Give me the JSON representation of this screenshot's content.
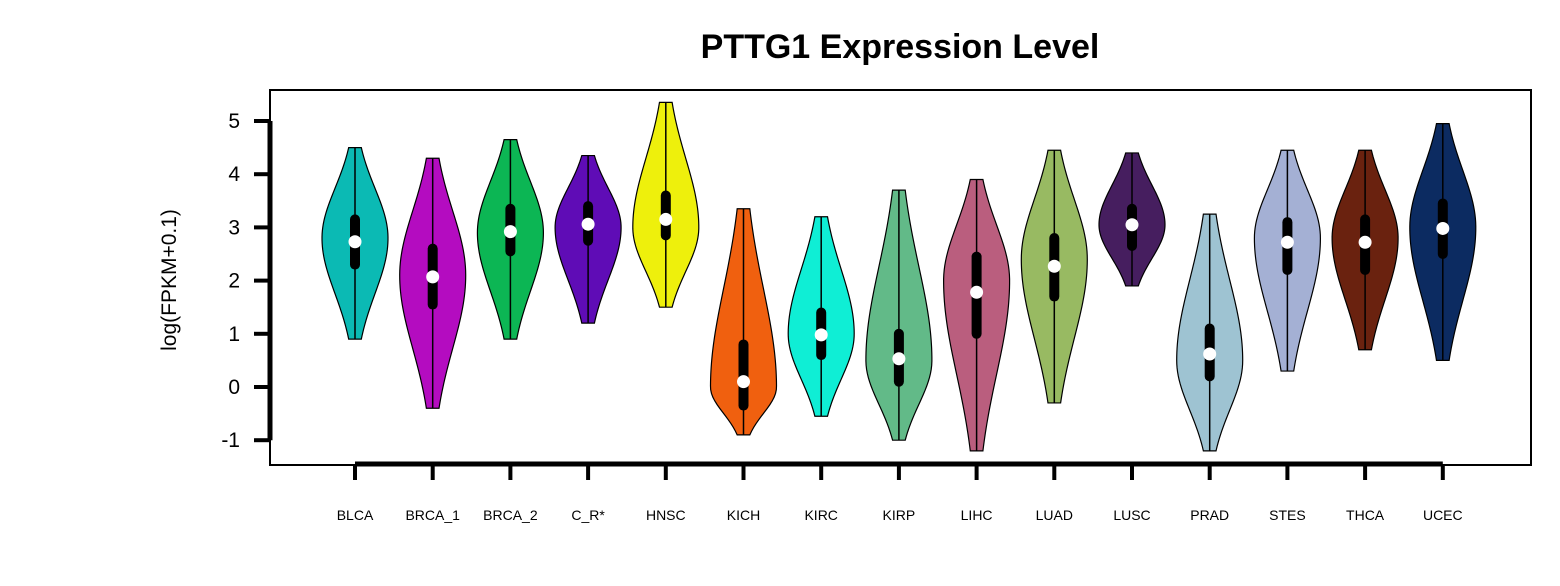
{
  "chart_data": {
    "type": "violin",
    "title": "PTTG1 Expression Level",
    "ylabel": "log(FPKM+0.1)",
    "xlabel": "",
    "ylim": [
      -1.5,
      5.6
    ],
    "yticks": [
      -1,
      0,
      1,
      2,
      3,
      4,
      5
    ],
    "categories": [
      "BLCA",
      "BRCA_1",
      "BRCA_2",
      "C_R*",
      "HNSC",
      "KICH",
      "KIRC",
      "KIRP",
      "LIHC",
      "LUAD",
      "LUSC",
      "PRAD",
      "STES",
      "THCA",
      "UCEC"
    ],
    "series": [
      {
        "category": "BLCA",
        "color": "#0BBAB4",
        "min": 0.9,
        "max": 4.5,
        "q1": 2.3,
        "median": 2.73,
        "q3": 3.15,
        "mode": 2.8
      },
      {
        "category": "BRCA_1",
        "color": "#B40CC0",
        "min": -0.4,
        "max": 4.3,
        "q1": 1.55,
        "median": 2.07,
        "q3": 2.6,
        "mode": 2.1
      },
      {
        "category": "BRCA_2",
        "color": "#0CB654",
        "min": 0.9,
        "max": 4.65,
        "q1": 2.55,
        "median": 2.92,
        "q3": 3.35,
        "mode": 2.9
      },
      {
        "category": "C_R*",
        "color": "#5F0CB6",
        "min": 1.2,
        "max": 4.35,
        "q1": 2.75,
        "median": 3.06,
        "q3": 3.4,
        "mode": 3.0
      },
      {
        "category": "HNSC",
        "color": "#EEF00C",
        "min": 1.5,
        "max": 5.35,
        "q1": 2.85,
        "median": 3.15,
        "q3": 3.6,
        "mode": 3.0
      },
      {
        "category": "KICH",
        "color": "#F0600F",
        "min": -0.9,
        "max": 3.35,
        "q1": -0.35,
        "median": 0.1,
        "q3": 0.8,
        "mode": 0.0
      },
      {
        "category": "KIRC",
        "color": "#0FEED5",
        "min": -0.55,
        "max": 3.2,
        "q1": 0.6,
        "median": 0.98,
        "q3": 1.4,
        "mode": 1.0
      },
      {
        "category": "KIRP",
        "color": "#62BA88",
        "min": -1.0,
        "max": 3.7,
        "q1": 0.1,
        "median": 0.53,
        "q3": 1.0,
        "mode": 0.5
      },
      {
        "category": "LIHC",
        "color": "#BA5E7E",
        "min": -1.2,
        "max": 3.9,
        "q1": 1.0,
        "median": 1.78,
        "q3": 2.45,
        "mode": 2.0
      },
      {
        "category": "LUAD",
        "color": "#98BA62",
        "min": -0.3,
        "max": 4.45,
        "q1": 1.7,
        "median": 2.27,
        "q3": 2.8,
        "mode": 2.4
      },
      {
        "category": "LUSC",
        "color": "#461E5F",
        "min": 1.9,
        "max": 4.4,
        "q1": 2.65,
        "median": 3.05,
        "q3": 3.35,
        "mode": 3.05
      },
      {
        "category": "PRAD",
        "color": "#9EC3D2",
        "min": -1.2,
        "max": 3.25,
        "q1": 0.2,
        "median": 0.62,
        "q3": 1.1,
        "mode": 0.5
      },
      {
        "category": "STES",
        "color": "#A4B0D4",
        "min": 0.3,
        "max": 4.45,
        "q1": 2.2,
        "median": 2.72,
        "q3": 3.1,
        "mode": 2.8
      },
      {
        "category": "THCA",
        "color": "#6A220F",
        "min": 0.7,
        "max": 4.45,
        "q1": 2.2,
        "median": 2.72,
        "q3": 3.15,
        "mode": 2.8
      },
      {
        "category": "UCEC",
        "color": "#0C2B61",
        "min": 0.5,
        "max": 4.95,
        "q1": 2.5,
        "median": 2.98,
        "q3": 3.45,
        "mode": 3.0
      }
    ],
    "grid": false,
    "legend": "none"
  }
}
